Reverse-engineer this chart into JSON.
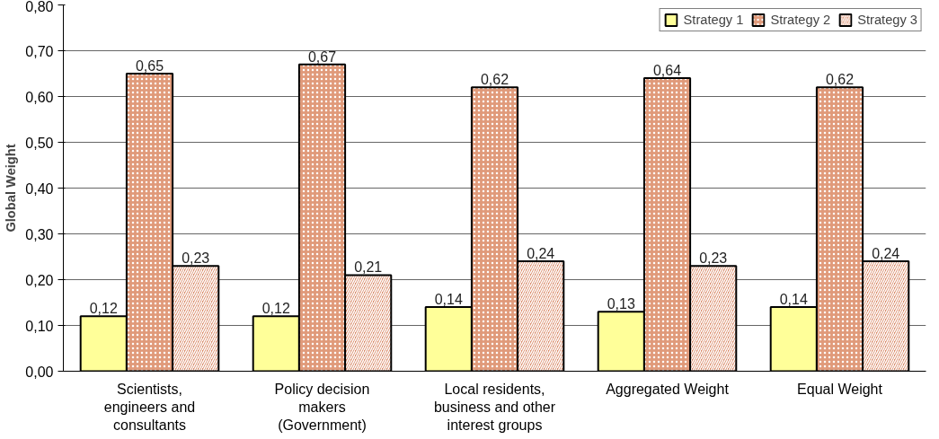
{
  "chart_data": {
    "type": "bar",
    "ylabel": "Global Weight",
    "categories": [
      "Scientists,\nengineers and\nconsultants",
      "Policy decision\nmakers\n(Government)",
      "Local residents,\nbusiness and other\ninterest groups",
      "Aggregated Weight",
      "Equal Weight"
    ],
    "series": [
      {
        "name": "Strategy 1",
        "color": "#ffff99",
        "values": [
          0.12,
          0.12,
          0.14,
          0.13,
          0.14
        ],
        "value_labels": [
          "0,12",
          "0,12",
          "0,14",
          "0,13",
          "0,14"
        ]
      },
      {
        "name": "Strategy 2",
        "color": "#e09a7a",
        "values": [
          0.65,
          0.67,
          0.62,
          0.64,
          0.62
        ],
        "value_labels": [
          "0,65",
          "0,67",
          "0,62",
          "0,64",
          "0,62"
        ]
      },
      {
        "name": "Strategy 3",
        "color": "#d98866",
        "values": [
          0.23,
          0.21,
          0.24,
          0.23,
          0.24
        ],
        "value_labels": [
          "0,23",
          "0,21",
          "0,24",
          "0,23",
          "0,24"
        ]
      }
    ],
    "ylim": [
      0,
      0.8
    ],
    "yticks": [
      {
        "value": 0,
        "label": "0,00"
      },
      {
        "value": 0.1,
        "label": "0,10"
      },
      {
        "value": 0.2,
        "label": "0,20"
      },
      {
        "value": 0.3,
        "label": "0,30"
      },
      {
        "value": 0.4,
        "label": "0,40"
      },
      {
        "value": 0.5,
        "label": "0,50"
      },
      {
        "value": 0.6,
        "label": "0,60"
      },
      {
        "value": 0.7,
        "label": "0,70"
      },
      {
        "value": 0.8,
        "label": "0,80"
      }
    ],
    "grid": "y",
    "legend": "top right"
  }
}
